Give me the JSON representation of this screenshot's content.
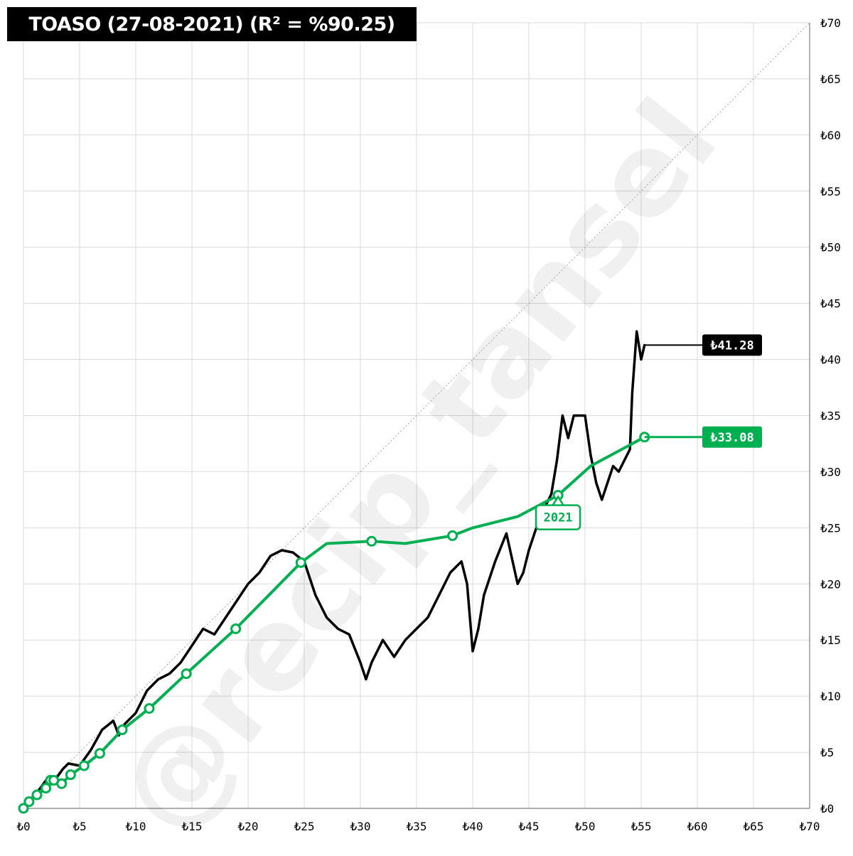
{
  "watermark": "@recip_tansel",
  "chart_data": {
    "type": "line",
    "title": "TOASO (27-08-2021) (R² = %90.25)",
    "xlabel": "",
    "ylabel": "",
    "xlim": [
      0,
      70
    ],
    "ylim": [
      0,
      70
    ],
    "x_ticks": [
      0,
      5,
      10,
      15,
      20,
      25,
      30,
      35,
      40,
      45,
      50,
      55,
      60,
      65,
      70
    ],
    "x_tick_labels": [
      "₺0",
      "₺5",
      "₺10",
      "₺15",
      "₺20",
      "₺25",
      "₺30",
      "₺35",
      "₺40",
      "₺45",
      "₺50",
      "₺55",
      "₺60",
      "₺65",
      "₺70"
    ],
    "y_ticks": [
      0,
      5,
      10,
      15,
      20,
      25,
      30,
      35,
      40,
      45,
      50,
      55,
      60,
      65,
      70
    ],
    "y_tick_labels": [
      "₺0",
      "₺5",
      "₺10",
      "₺15",
      "₺20",
      "₺25",
      "₺30",
      "₺35",
      "₺40",
      "₺45",
      "₺50",
      "₺55",
      "₺60",
      "₺65",
      "₺70"
    ],
    "grid": true,
    "y_axis_side": "right",
    "reference_line": {
      "from": [
        0,
        0
      ],
      "to": [
        70,
        70
      ],
      "style": "dotted"
    },
    "colors": {
      "price": "#000000",
      "trend": "#00b050",
      "grid": "#d9d9d9"
    },
    "series": [
      {
        "color": "#000000",
        "end_label": "₺41.28",
        "x": [
          0,
          0.5,
          1,
          1.5,
          2,
          2.5,
          3,
          3.5,
          4,
          5,
          6,
          7,
          8,
          8.5,
          9,
          10,
          11,
          12,
          13,
          14,
          15,
          16,
          17,
          18,
          19,
          20,
          21,
          22,
          23,
          24,
          25,
          26,
          27,
          28,
          29,
          30,
          30.5,
          31,
          32,
          33,
          34,
          35,
          36,
          37,
          38,
          39,
          39.5,
          40,
          40.5,
          41,
          42,
          43,
          44,
          44.5,
          45,
          46,
          46.5,
          47,
          47.5,
          48,
          48.5,
          49,
          50,
          50.5,
          51,
          51.5,
          52,
          52.5,
          53,
          54,
          54.2,
          54.6,
          55,
          55.3
        ],
        "y": [
          0,
          0.6,
          1.2,
          1.8,
          2.5,
          2.2,
          2.8,
          3.5,
          4,
          3.8,
          5.2,
          7,
          7.8,
          6.5,
          7.5,
          8.5,
          10.5,
          11.5,
          12,
          13,
          14.5,
          16,
          15.5,
          17,
          18.5,
          20,
          21,
          22.5,
          23,
          22.8,
          22,
          19,
          17,
          16,
          15.5,
          13,
          11.5,
          13,
          15,
          13.5,
          15,
          16,
          17,
          19,
          21,
          22,
          20,
          14,
          16,
          19,
          22,
          24.5,
          20,
          21,
          23,
          26,
          27,
          28,
          31,
          35,
          33,
          35,
          35,
          31.5,
          29,
          27.5,
          29,
          30.5,
          30,
          32,
          37,
          42.5,
          40,
          41.28
        ]
      },
      {
        "color": "#00b050",
        "label": "2021",
        "end_label": "₺33.08",
        "x": [
          0,
          0.5,
          1.2,
          2,
          2.4,
          2.7,
          3.4,
          4.2,
          5.4,
          6.8,
          8.8,
          11.2,
          14.5,
          18.9,
          24.7,
          27,
          31,
          34,
          38.2,
          40,
          44,
          47.6,
          50.5,
          55.3
        ],
        "y": [
          0,
          0.6,
          1.2,
          1.8,
          2.5,
          2.5,
          2.2,
          3,
          3.8,
          4.9,
          7,
          8.9,
          12,
          16,
          21.9,
          23.6,
          23.8,
          23.6,
          24.3,
          25.0,
          26.0,
          27.9,
          30.5,
          33.08
        ],
        "markers_at": [
          0,
          1,
          2,
          3,
          4,
          5,
          6,
          7,
          8,
          9,
          10,
          11,
          12,
          13,
          14,
          16,
          18,
          21,
          23
        ]
      }
    ]
  }
}
